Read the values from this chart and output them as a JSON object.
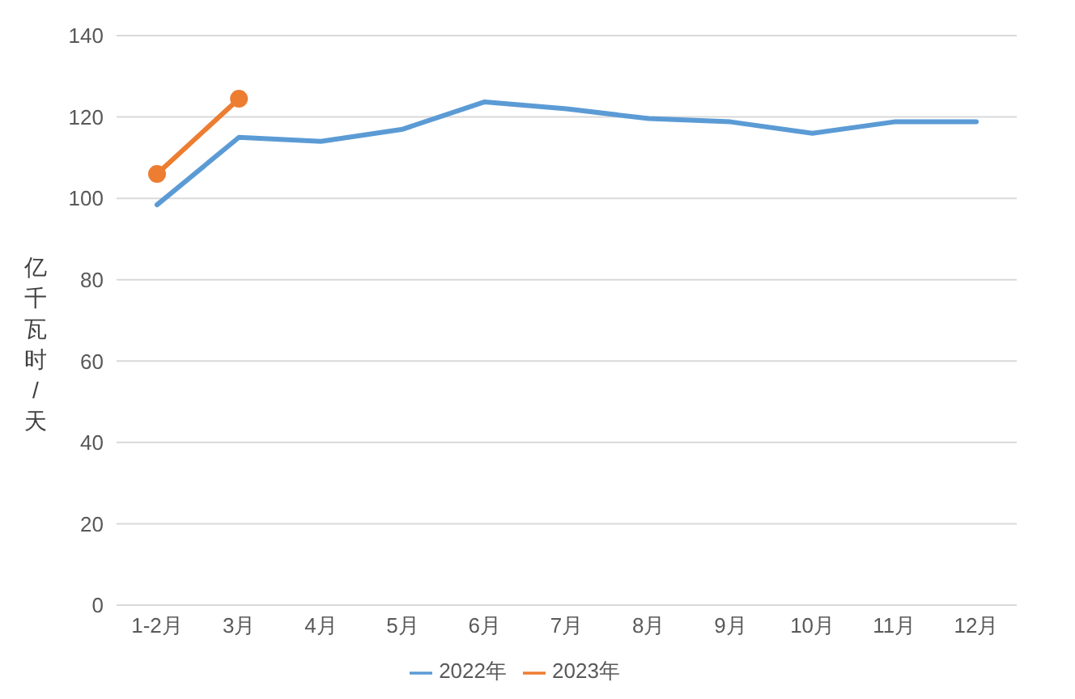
{
  "chart_data": {
    "type": "line",
    "ylabel": "亿千瓦时/天",
    "categories": [
      "1-2月",
      "3月",
      "4月",
      "5月",
      "6月",
      "7月",
      "8月",
      "9月",
      "10月",
      "11月",
      "12月"
    ],
    "series": [
      {
        "name": "2022年",
        "color": "#5b9bd5",
        "marker": "none",
        "values": [
          98.4,
          115,
          114,
          117,
          123.7,
          122,
          119.6,
          118.8,
          116,
          118.8,
          118.8
        ]
      },
      {
        "name": "2023年",
        "color": "#ed7d31",
        "marker": "circle",
        "values": [
          106,
          124.5,
          null,
          null,
          null,
          null,
          null,
          null,
          null,
          null,
          null
        ]
      }
    ],
    "ylim": [
      0,
      140
    ],
    "yticks": [
      0,
      20,
      40,
      60,
      80,
      100,
      120,
      140
    ],
    "grid": "y",
    "legend": "bottom"
  }
}
